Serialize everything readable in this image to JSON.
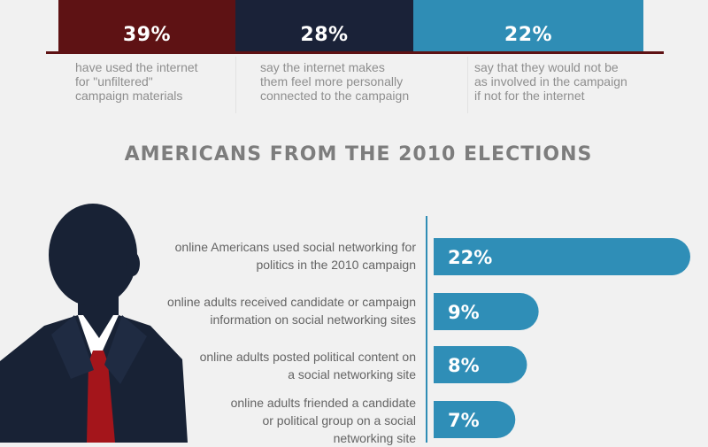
{
  "colors": {
    "maroon": "#5e1214",
    "navy": "#1a2238",
    "teal": "#2f8db5",
    "bar_teal": "#2f8eb7",
    "silhouette": "#182235",
    "tie": "#a4151b",
    "shirt": "#ffffff"
  },
  "top_stats": [
    {
      "value": "39%",
      "description_lines": [
        "have used the internet",
        "for \"unfiltered\"",
        "campaign materials"
      ],
      "color": "#5e1214"
    },
    {
      "value": "28%",
      "description_lines": [
        "say the internet makes",
        "them feel more personally",
        "connected to the campaign"
      ],
      "color": "#1a2238"
    },
    {
      "value": "22%",
      "description_lines": [
        "say that they would not be",
        "as involved in the campaign",
        "if not for the internet"
      ],
      "color": "#2f8db5"
    }
  ],
  "section_title": "AMERICANS FROM THE 2010 ELECTIONS",
  "chart_data": {
    "type": "bar",
    "orientation": "horizontal",
    "title": "AMERICANS FROM THE 2010 ELECTIONS",
    "categories": [
      "online Americans used social networking for politics in the 2010 campaign",
      "online adults received candidate or campaign information on social networking sites",
      "online adults posted political content on a social networking site",
      "online adults friended a candidate or political group on a social networking site"
    ],
    "category_lines": [
      [
        "online Americans used social networking for",
        "politics in the 2010 campaign"
      ],
      [
        "online adults received candidate or campaign",
        "information on social networking sites"
      ],
      [
        "online adults posted political content on",
        "a social networking site"
      ],
      [
        "online adults friended a candidate",
        "or political group on a social",
        "networking site"
      ]
    ],
    "values": [
      22,
      9,
      8,
      7
    ],
    "value_labels": [
      "22%",
      "9%",
      "8%",
      "7%"
    ],
    "unit": "%",
    "color": "#2f8eb7",
    "grid": false,
    "legend": "none"
  }
}
